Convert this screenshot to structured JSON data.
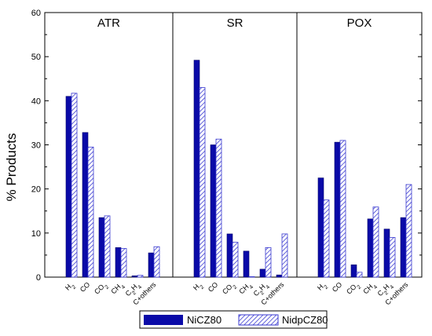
{
  "chart_data": {
    "type": "bar",
    "ylabel": "% Products",
    "ylim": [
      0,
      60
    ],
    "yticks": [
      "0",
      "10",
      "20",
      "30",
      "40",
      "50",
      "60"
    ],
    "categories": [
      "H2",
      "CO",
      "CO2",
      "CH4",
      "C2H4",
      "C+others"
    ],
    "colors": {
      "NiCZ80": "#0a0aa8",
      "NidpCZ80": "#3b3bd0"
    },
    "panels": [
      {
        "title": "ATR",
        "series": [
          {
            "name": "NiCZ80",
            "values": [
              41.0,
              32.8,
              13.5,
              6.7,
              0.3,
              5.5
            ]
          },
          {
            "name": "NidpCZ80",
            "values": [
              41.7,
              29.5,
              13.9,
              6.5,
              0.4,
              6.9
            ]
          }
        ]
      },
      {
        "title": "SR",
        "series": [
          {
            "name": "NiCZ80",
            "values": [
              49.2,
              30.0,
              9.8,
              5.9,
              1.8,
              0.5
            ]
          },
          {
            "name": "NidpCZ80",
            "values": [
              43.0,
              31.3,
              7.9,
              0.0,
              6.7,
              9.8
            ]
          }
        ]
      },
      {
        "title": "POX",
        "series": [
          {
            "name": "NiCZ80",
            "values": [
              22.5,
              30.6,
              2.8,
              13.2,
              10.9,
              13.5
            ]
          },
          {
            "name": "NidpCZ80",
            "values": [
              17.5,
              31.0,
              1.1,
              15.9,
              9.0,
              21.0
            ]
          }
        ]
      }
    ],
    "legend": [
      "NiCZ80",
      "NidpCZ80"
    ],
    "legend_position": "bottom"
  }
}
